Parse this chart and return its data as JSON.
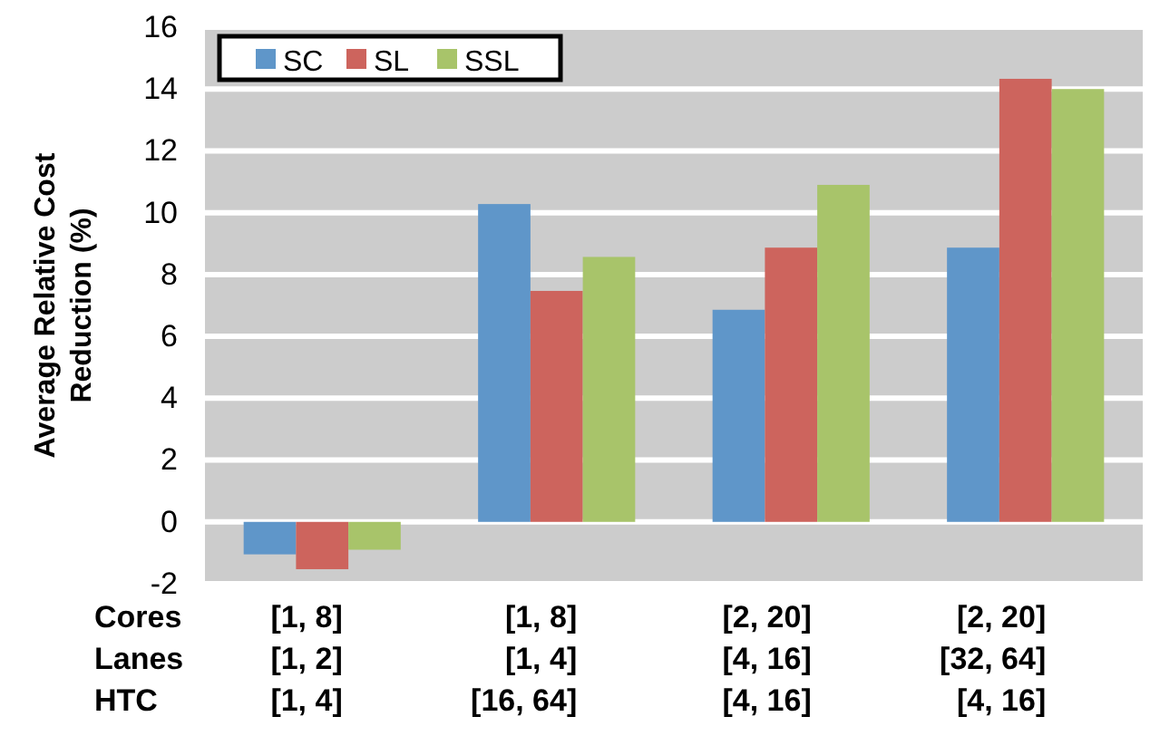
{
  "chart_data": {
    "type": "bar",
    "ylabel": "Average Relative Cost Reduction (%)",
    "categories": [
      "[1, 8]\n[1, 2]\n[1, 4]",
      "[1, 8]\n[1, 4]\n[16, 64]",
      "[2, 20]\n[4, 16]\n[4, 16]",
      "[2, 20]\n[32, 64]\n[4, 16]"
    ],
    "annotations": [
      "Cores",
      "Lanes",
      "HTC"
    ],
    "series": [
      {
        "name": "SC",
        "color": "#5f96c9",
        "values": [
          -1.05,
          10.28,
          6.86,
          8.87
        ]
      },
      {
        "name": "SL",
        "color": "#cd645d",
        "values": [
          -1.53,
          7.47,
          8.87,
          14.33
        ]
      },
      {
        "name": "SSL",
        "color": "#a8c46a",
        "values": [
          -0.9,
          8.57,
          10.9,
          14.0
        ]
      }
    ],
    "ylim": [
      -2,
      16
    ],
    "yticks": [
      -2,
      0,
      2,
      4,
      6,
      8,
      10,
      12,
      14,
      16
    ],
    "grid": "y",
    "legend": "top left"
  }
}
